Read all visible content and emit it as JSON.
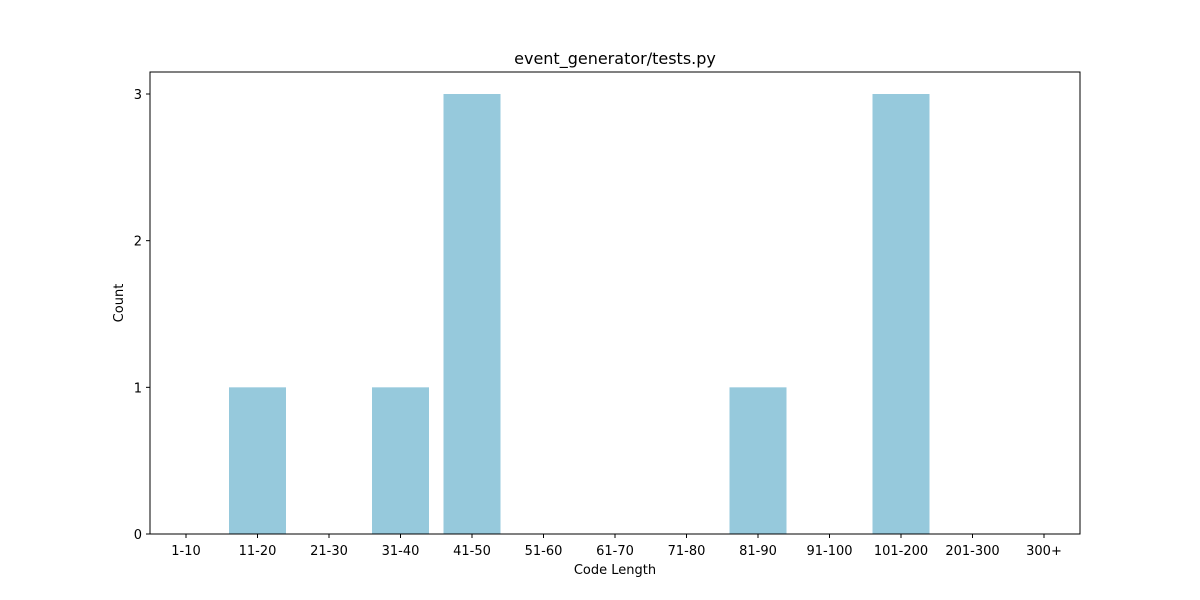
{
  "chart_data": {
    "type": "bar",
    "title": "event_generator/tests.py",
    "xlabel": "Code Length",
    "ylabel": "Count",
    "categories": [
      "1-10",
      "11-20",
      "21-30",
      "31-40",
      "41-50",
      "51-60",
      "61-70",
      "71-80",
      "81-90",
      "91-100",
      "101-200",
      "201-300",
      "300+"
    ],
    "values": [
      0,
      1,
      0,
      1,
      3,
      0,
      0,
      0,
      1,
      0,
      3,
      0,
      0
    ],
    "yticks": [
      0,
      1,
      2,
      3
    ],
    "ylim": [
      0,
      3.15
    ],
    "grid": false,
    "legend": "none",
    "bar_color": "#96c9dc"
  }
}
